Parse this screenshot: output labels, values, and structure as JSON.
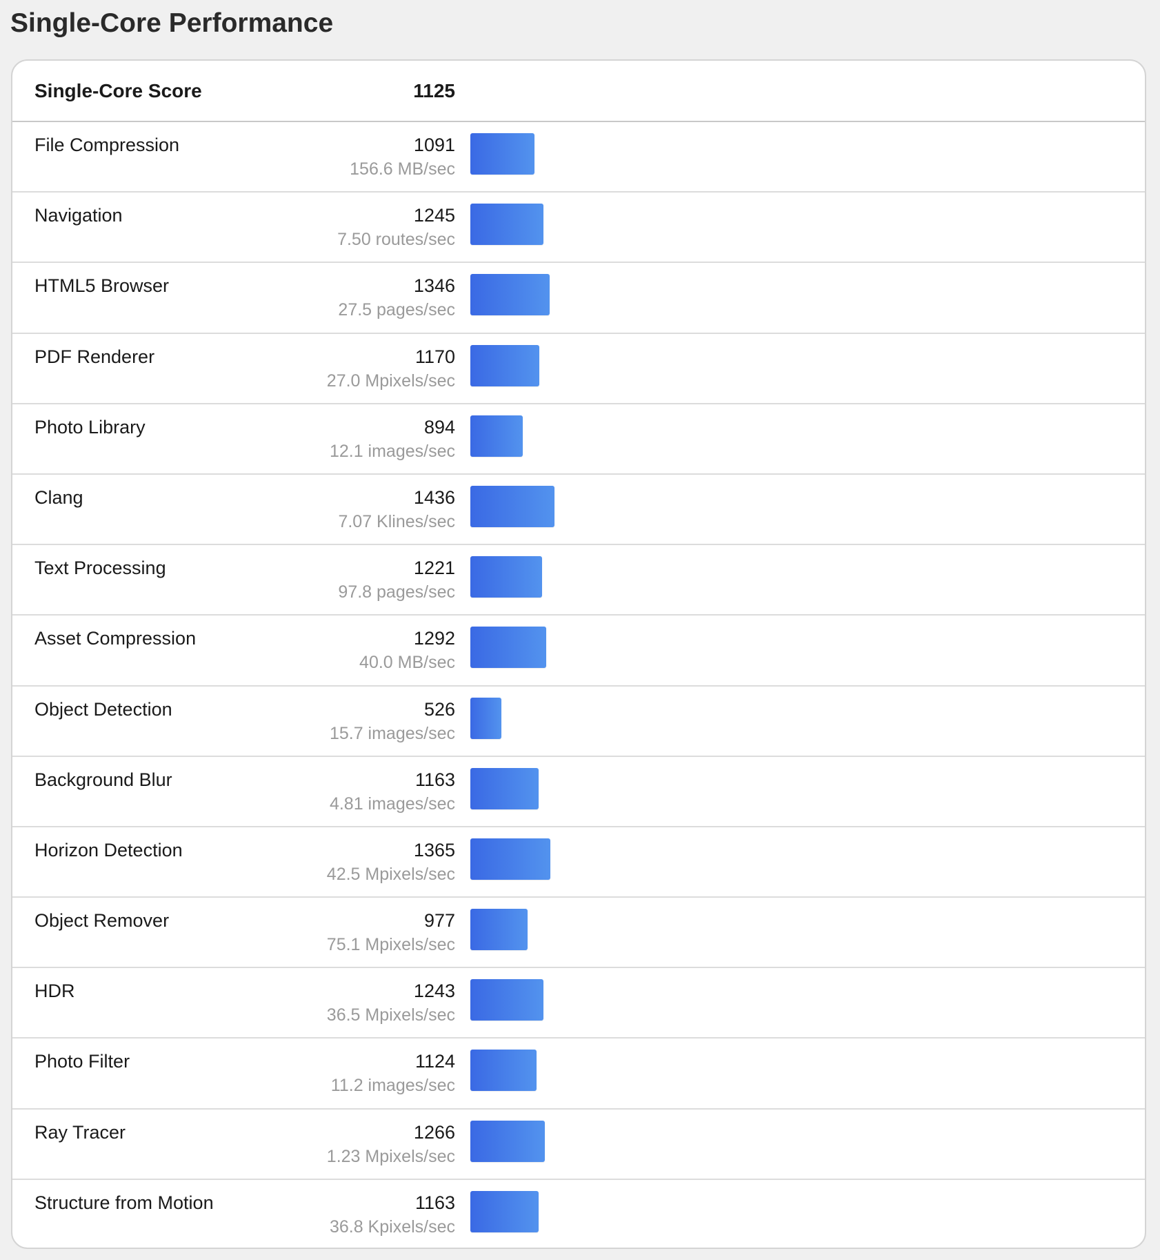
{
  "page": {
    "title": "Single-Core Performance"
  },
  "table": {
    "header": {
      "label": "Single-Core Score",
      "score": "1125"
    },
    "bar_color_start": "#3a69e4",
    "bar_color_end": "#5393ee",
    "rows": [
      {
        "name": "File Compression",
        "score": "1091",
        "rate": "156.6 MB/sec",
        "value": 1091
      },
      {
        "name": "Navigation",
        "score": "1245",
        "rate": "7.50 routes/sec",
        "value": 1245
      },
      {
        "name": "HTML5 Browser",
        "score": "1346",
        "rate": "27.5 pages/sec",
        "value": 1346
      },
      {
        "name": "PDF Renderer",
        "score": "1170",
        "rate": "27.0 Mpixels/sec",
        "value": 1170
      },
      {
        "name": "Photo Library",
        "score": "894",
        "rate": "12.1 images/sec",
        "value": 894
      },
      {
        "name": "Clang",
        "score": "1436",
        "rate": "7.07 Klines/sec",
        "value": 1436
      },
      {
        "name": "Text Processing",
        "score": "1221",
        "rate": "97.8 pages/sec",
        "value": 1221
      },
      {
        "name": "Asset Compression",
        "score": "1292",
        "rate": "40.0 MB/sec",
        "value": 1292
      },
      {
        "name": "Object Detection",
        "score": "526",
        "rate": "15.7 images/sec",
        "value": 526
      },
      {
        "name": "Background Blur",
        "score": "1163",
        "rate": "4.81 images/sec",
        "value": 1163
      },
      {
        "name": "Horizon Detection",
        "score": "1365",
        "rate": "42.5 Mpixels/sec",
        "value": 1365
      },
      {
        "name": "Object Remover",
        "score": "977",
        "rate": "75.1 Mpixels/sec",
        "value": 977
      },
      {
        "name": "HDR",
        "score": "1243",
        "rate": "36.5 Mpixels/sec",
        "value": 1243
      },
      {
        "name": "Photo Filter",
        "score": "1124",
        "rate": "11.2 images/sec",
        "value": 1124
      },
      {
        "name": "Ray Tracer",
        "score": "1266",
        "rate": "1.23 Mpixels/sec",
        "value": 1266
      },
      {
        "name": "Structure from Motion",
        "score": "1163",
        "rate": "36.8 Kpixels/sec",
        "value": 1163
      }
    ]
  }
}
